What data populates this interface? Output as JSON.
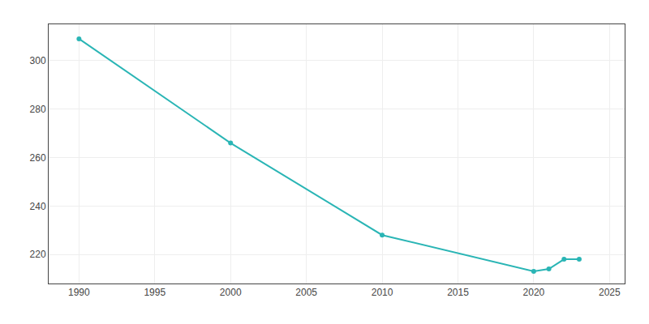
{
  "chart_data": {
    "type": "line",
    "x": [
      1990,
      2000,
      2010,
      2020,
      2021,
      2022,
      2023
    ],
    "values": [
      309,
      266,
      228,
      213,
      214,
      218,
      218
    ],
    "color": "#2ab5b5",
    "marker": "circle",
    "xlim": [
      1988,
      2026
    ],
    "ylim": [
      208,
      315
    ],
    "xticks": [
      1990,
      1995,
      2000,
      2005,
      2010,
      2015,
      2020,
      2025
    ],
    "yticks": [
      220,
      240,
      260,
      280,
      300
    ],
    "grid": true
  }
}
